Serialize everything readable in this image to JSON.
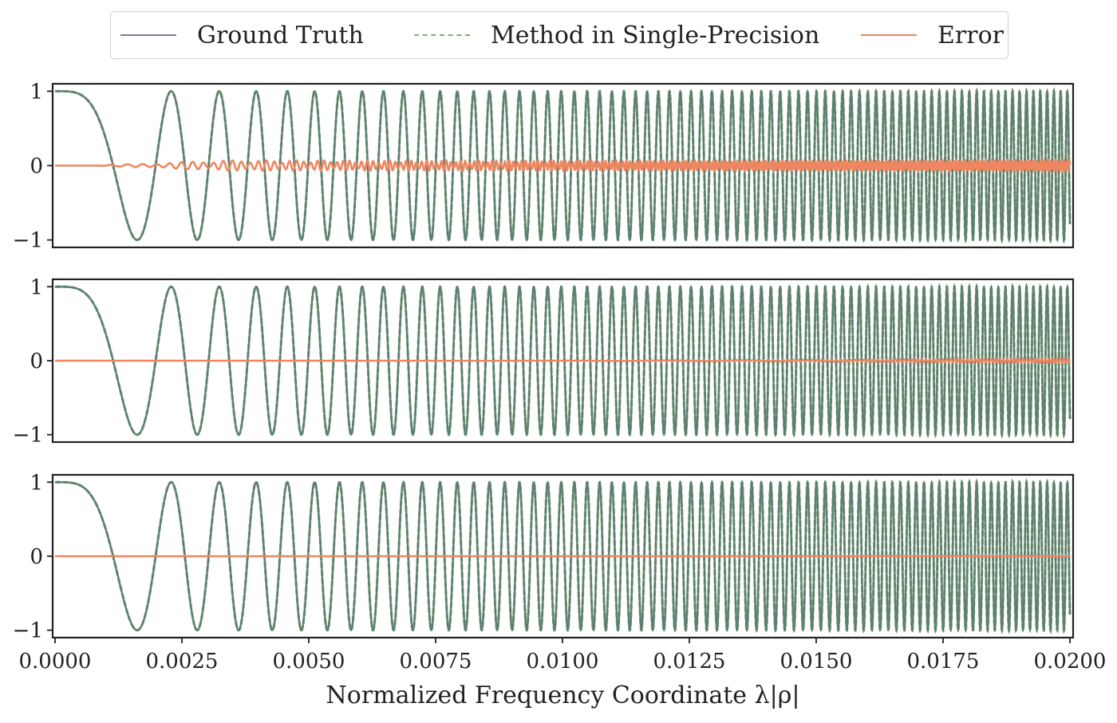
{
  "legend": {
    "items": [
      {
        "label": "Ground Truth",
        "color": "#7a7d9e",
        "style": "solid"
      },
      {
        "label": "Method in Single-Precision",
        "color": "#7fae6f",
        "style": "dashed"
      },
      {
        "label": "Error",
        "color": "#ee8661",
        "style": "solid"
      }
    ]
  },
  "chart_data": [
    {
      "type": "line",
      "xlim": [
        0,
        0.02
      ],
      "ylim": [
        -1.1,
        1.1
      ],
      "yticks": [
        1,
        0,
        -1
      ],
      "ytick_labels": [
        "1",
        "0",
        "−1"
      ],
      "grid": false,
      "series": [
        {
          "name": "Ground Truth",
          "color": "#5f7f72",
          "function": "cos(1.2e6 * x^2)"
        },
        {
          "name": "Method in Single-Precision",
          "color": "#7fae6f",
          "function": "cos(1.2e6 * x^2)"
        },
        {
          "name": "Error",
          "color": "#ee8661",
          "amplitude_max": 0.08,
          "description": "oscillating error, largest amplitude ~0.07 in mid range"
        }
      ]
    },
    {
      "type": "line",
      "xlim": [
        0,
        0.02
      ],
      "ylim": [
        -1.1,
        1.1
      ],
      "yticks": [
        1,
        0,
        -1
      ],
      "ytick_labels": [
        "1",
        "0",
        "−1"
      ],
      "grid": false,
      "series": [
        {
          "name": "Ground Truth",
          "color": "#5f7f72",
          "function": "cos(1.2e6 * x^2)"
        },
        {
          "name": "Method in Single-Precision",
          "color": "#7fae6f",
          "function": "cos(1.2e6 * x^2)"
        },
        {
          "name": "Error",
          "color": "#ee8661",
          "amplitude_max": 0.04,
          "description": "near zero, growing slightly toward x = 0.02"
        }
      ]
    },
    {
      "type": "line",
      "xlim": [
        0,
        0.02
      ],
      "ylim": [
        -1.1,
        1.1
      ],
      "yticks": [
        1,
        0,
        -1
      ],
      "ytick_labels": [
        "1",
        "0",
        "−1"
      ],
      "grid": false,
      "xticks": [
        0,
        0.0025,
        0.005,
        0.0075,
        0.01,
        0.0125,
        0.015,
        0.0175,
        0.02
      ],
      "xtick_labels": [
        "0.0000",
        "0.0025",
        "0.0050",
        "0.0075",
        "0.0100",
        "0.0125",
        "0.0150",
        "0.0175",
        "0.0200"
      ],
      "xlabel": "Normalized Frequency Coordinate λ|ρ|",
      "series": [
        {
          "name": "Ground Truth",
          "color": "#5f7f72",
          "function": "cos(1.2e6 * x^2)"
        },
        {
          "name": "Method in Single-Precision",
          "color": "#7fae6f",
          "function": "cos(1.2e6 * x^2)"
        },
        {
          "name": "Error",
          "color": "#ee8661",
          "amplitude_max": 0.0,
          "description": "zero"
        }
      ]
    }
  ]
}
